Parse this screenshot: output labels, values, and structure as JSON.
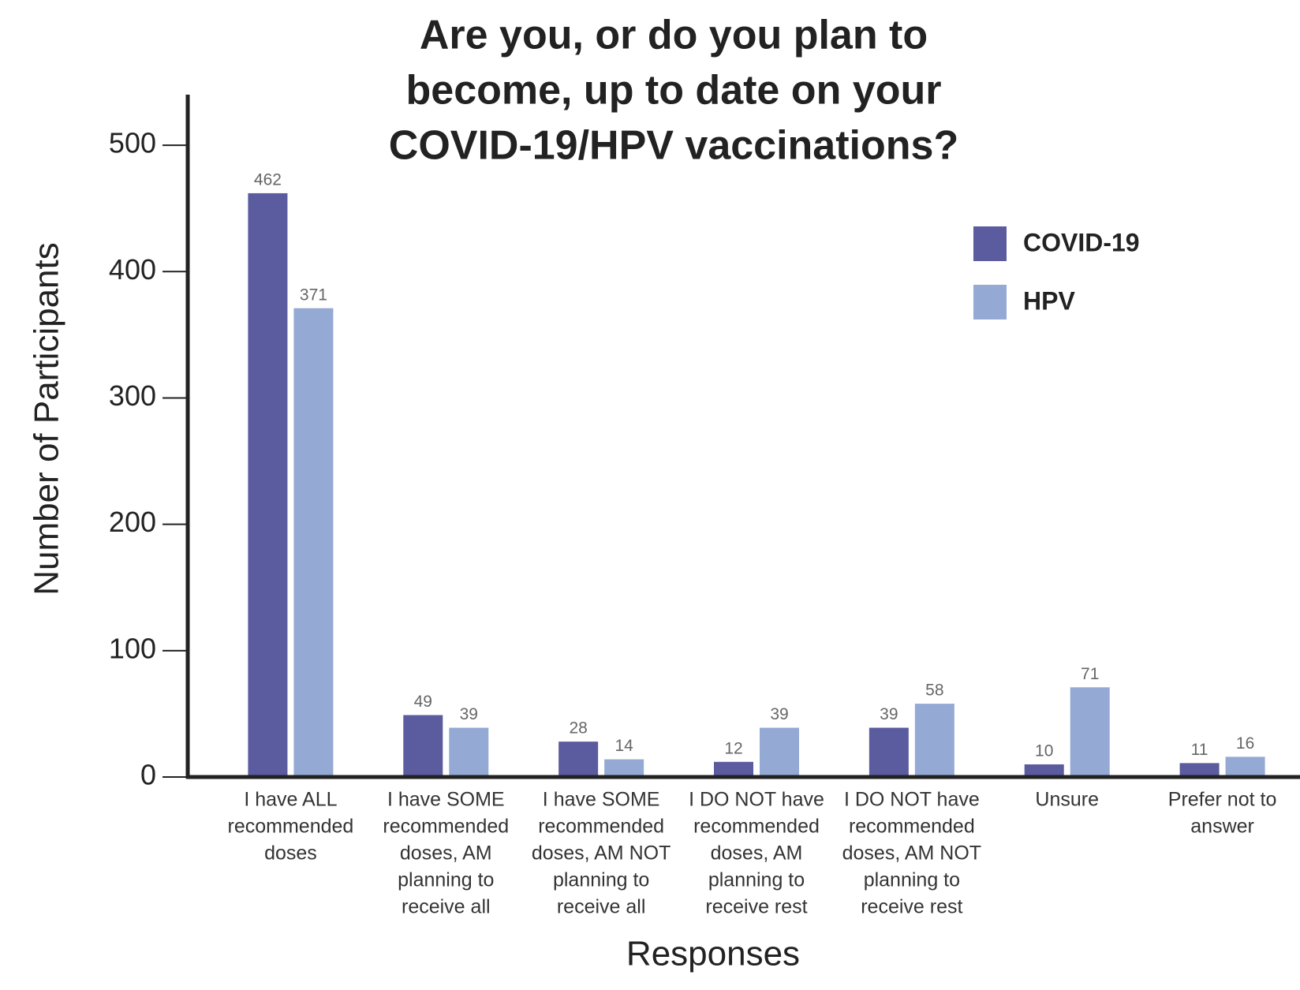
{
  "chart_data": {
    "type": "bar",
    "title": [
      "Are you, or do you plan to",
      "become, up to date on your",
      "COVID-19/HPV vaccinations?"
    ],
    "x_label": "Responses",
    "y_label": "Number of Participants",
    "categories": [
      [
        "I have  ALL",
        "recommended",
        "doses"
      ],
      [
        "I have SOME",
        "recommended",
        "doses, AM",
        "planning to",
        "receive all"
      ],
      [
        "I have SOME",
        "recommended",
        "doses, AM NOT",
        "planning to",
        "receive all"
      ],
      [
        "I DO NOT have",
        "recommended",
        "doses, AM",
        "planning to",
        "receive rest"
      ],
      [
        "I DO NOT have",
        "recommended",
        "doses, AM NOT",
        "planning to",
        "receive rest"
      ],
      [
        "Unsure"
      ],
      [
        "Prefer not to",
        "answer"
      ]
    ],
    "series": [
      {
        "name": "COVID-19",
        "color": "#5b5b9f",
        "values": [
          462,
          49,
          28,
          12,
          39,
          10,
          11
        ]
      },
      {
        "name": "HPV",
        "color": "#94a9d4",
        "values": [
          371,
          39,
          14,
          39,
          58,
          71,
          16
        ]
      }
    ],
    "ylim": [
      0,
      540
    ],
    "yticks": [
      0,
      100,
      200,
      300,
      400,
      500
    ],
    "legend": "upper right"
  }
}
